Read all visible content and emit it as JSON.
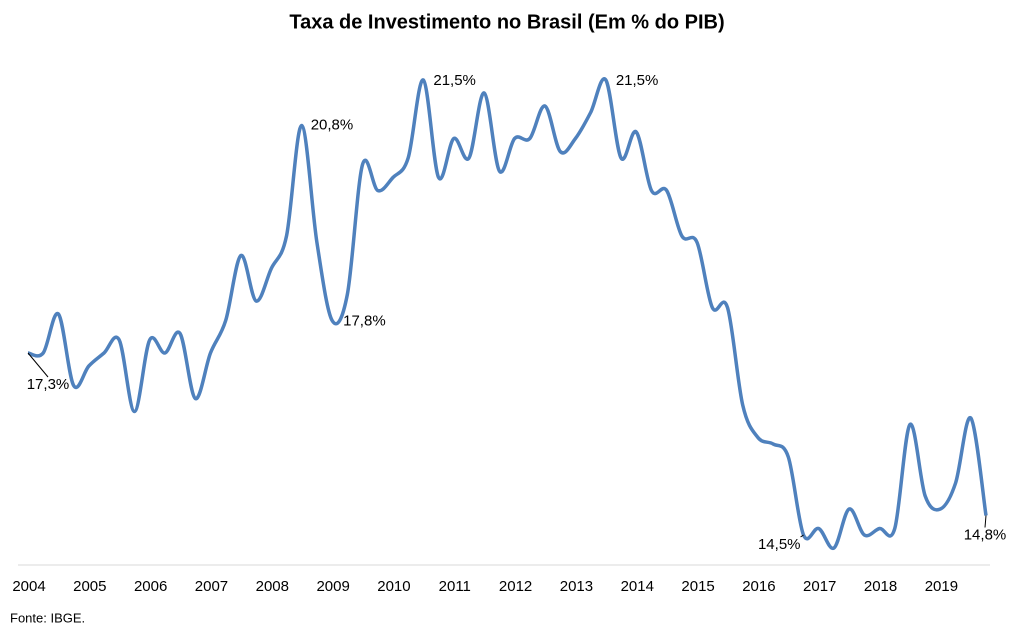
{
  "chart_data": {
    "type": "line",
    "title": "Taxa de Investimento no Brasil (Em % do PIB)",
    "source": "Fonte: IBGE.",
    "categories": [
      "2004",
      null,
      null,
      null,
      "2005",
      null,
      null,
      null,
      "2006",
      null,
      null,
      null,
      "2007",
      null,
      null,
      null,
      "2008",
      null,
      null,
      null,
      "2009",
      null,
      null,
      null,
      "2010",
      null,
      null,
      null,
      "2011",
      null,
      null,
      null,
      "2012",
      null,
      null,
      null,
      "2013",
      null,
      null,
      null,
      "2014",
      null,
      null,
      null,
      "2015",
      null,
      null,
      null,
      "2016",
      null,
      null,
      null,
      "2017",
      null,
      null,
      null,
      "2018",
      null,
      null,
      null,
      "2019",
      null,
      null,
      null
    ],
    "series": [
      {
        "name": "Taxa de Investimento",
        "color": "#4f81bd",
        "values": [
          17.3,
          17.3,
          17.9,
          16.8,
          17.1,
          17.3,
          17.5,
          16.4,
          17.5,
          17.3,
          17.6,
          16.6,
          17.3,
          17.8,
          18.8,
          18.1,
          18.6,
          19.1,
          20.8,
          19.0,
          17.8,
          18.2,
          20.2,
          19.8,
          20.0,
          20.3,
          21.5,
          20.0,
          20.6,
          20.3,
          21.3,
          20.1,
          20.6,
          20.6,
          21.1,
          20.4,
          20.6,
          21.0,
          21.5,
          20.3,
          20.7,
          19.8,
          19.8,
          19.1,
          19.0,
          18.0,
          18.0,
          16.5,
          16.0,
          15.9,
          15.7,
          14.5,
          14.6,
          14.3,
          14.9,
          14.5,
          14.6,
          14.6,
          16.2,
          15.1,
          14.9,
          15.3,
          16.3,
          14.8
        ],
        "value_labels": [
          "17,3%",
          null,
          null,
          null,
          null,
          null,
          null,
          null,
          null,
          null,
          null,
          null,
          null,
          null,
          null,
          null,
          null,
          null,
          "20,8%",
          null,
          "17,8%",
          null,
          null,
          null,
          null,
          null,
          "21,5%",
          null,
          null,
          null,
          null,
          null,
          null,
          null,
          null,
          null,
          null,
          null,
          "21,5%",
          null,
          null,
          null,
          null,
          null,
          null,
          null,
          null,
          null,
          null,
          null,
          null,
          "14,5%",
          null,
          null,
          null,
          null,
          null,
          null,
          null,
          null,
          null,
          null,
          null,
          "14,8%"
        ]
      }
    ],
    "ylim": [
      14,
      22
    ],
    "grid": false
  }
}
